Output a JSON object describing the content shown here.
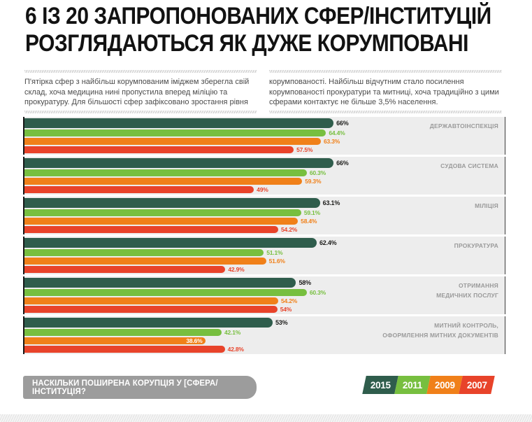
{
  "header": {
    "title_line1": "6 ІЗ 20 ЗАПРОПОНОВАНИХ СФЕР/ІНСТИТУЦІЙ",
    "title_line2": "РОЗГЛЯДАЮТЬСЯ ЯК ДУЖЕ КОРУМПОВАНІ"
  },
  "intro": {
    "left_paragraph": "П'ятірка сфер з найбільш корумпованим іміджем зберегла свій склад, хоча медицина нині пропустила вперед міліцію та прокуратуру. Для більшості сфер зафіксовано зростання рівня",
    "right_paragraph": "корумпованості. Найбільш відчутним стало посилення корумпованості прокуратури та митниці, хоча традиційно з цими сферами контактує не більше 3,5% населення."
  },
  "chart_data": {
    "type": "bar",
    "orientation": "horizontal",
    "unit": "%",
    "xlim": [
      0,
      100
    ],
    "grid": false,
    "legend_position": "bottom-right",
    "question": "НАСКІЛЬКИ ПОШИРЕНА КОРУПЦІЯ У [СФЕРА/ІНСТИТУЦІЯ?",
    "categories": [
      "ДЕРЖАВТОІНСПЕКЦІЯ",
      "СУДОВА СИСТЕМА",
      "МІЛІЦІЯ",
      "ПРОКУРАТУРА",
      "ОТРИМАННЯ\nМЕДИЧНИХ ПОСЛУГ",
      "МИТНИЙ КОНТРОЛЬ,\nОФОРМЛЕННЯ МИТНИХ ДОКУМЕНТІВ"
    ],
    "series": [
      {
        "name": "2015",
        "color": "#2f5d4c",
        "label_color": "#1d1d1b",
        "values": [
          66,
          66,
          63.1,
          62.4,
          58,
          53
        ],
        "labels": [
          "66%",
          "66%",
          "63.1%",
          "62.4%",
          "58%",
          "53%"
        ],
        "label_inside": [
          false,
          false,
          false,
          false,
          false,
          false
        ]
      },
      {
        "name": "2011",
        "color": "#77bf3f",
        "label_color": "#77bf3f",
        "values": [
          64.4,
          60.3,
          59.1,
          51.1,
          60.3,
          42.1
        ],
        "labels": [
          "64.4%",
          "60.3%",
          "59.1%",
          "51.1%",
          "60.3%",
          "42.1%"
        ],
        "label_inside": [
          false,
          false,
          false,
          false,
          false,
          false
        ]
      },
      {
        "name": "2009",
        "color": "#f08019",
        "label_color": "#f08019",
        "values": [
          63.3,
          59.3,
          58.4,
          51.6,
          54.2,
          38.6
        ],
        "labels": [
          "63.3%",
          "59.3%",
          "58.4%",
          "51.6%",
          "54.2%",
          "38.6%"
        ],
        "label_inside": [
          false,
          false,
          false,
          false,
          false,
          true
        ]
      },
      {
        "name": "2007",
        "color": "#e8432a",
        "label_color": "#e8432a",
        "values": [
          57.5,
          49,
          54.2,
          42.9,
          54,
          42.8
        ],
        "labels": [
          "57.5%",
          "49%",
          "54.2%",
          "42.9%",
          "54%",
          "42.8%"
        ],
        "label_inside": [
          false,
          false,
          false,
          false,
          false,
          false
        ]
      }
    ]
  },
  "footer": {
    "question_label": "НАСКІЛЬКИ ПОШИРЕНА КОРУПЦІЯ У [СФЕРА/ІНСТИТУЦІЯ?"
  },
  "colors": {
    "panel_bg": "#ededed",
    "category_text": "#9a9a9a",
    "question_box": "#9c9c9c",
    "title_text": "#121212"
  }
}
